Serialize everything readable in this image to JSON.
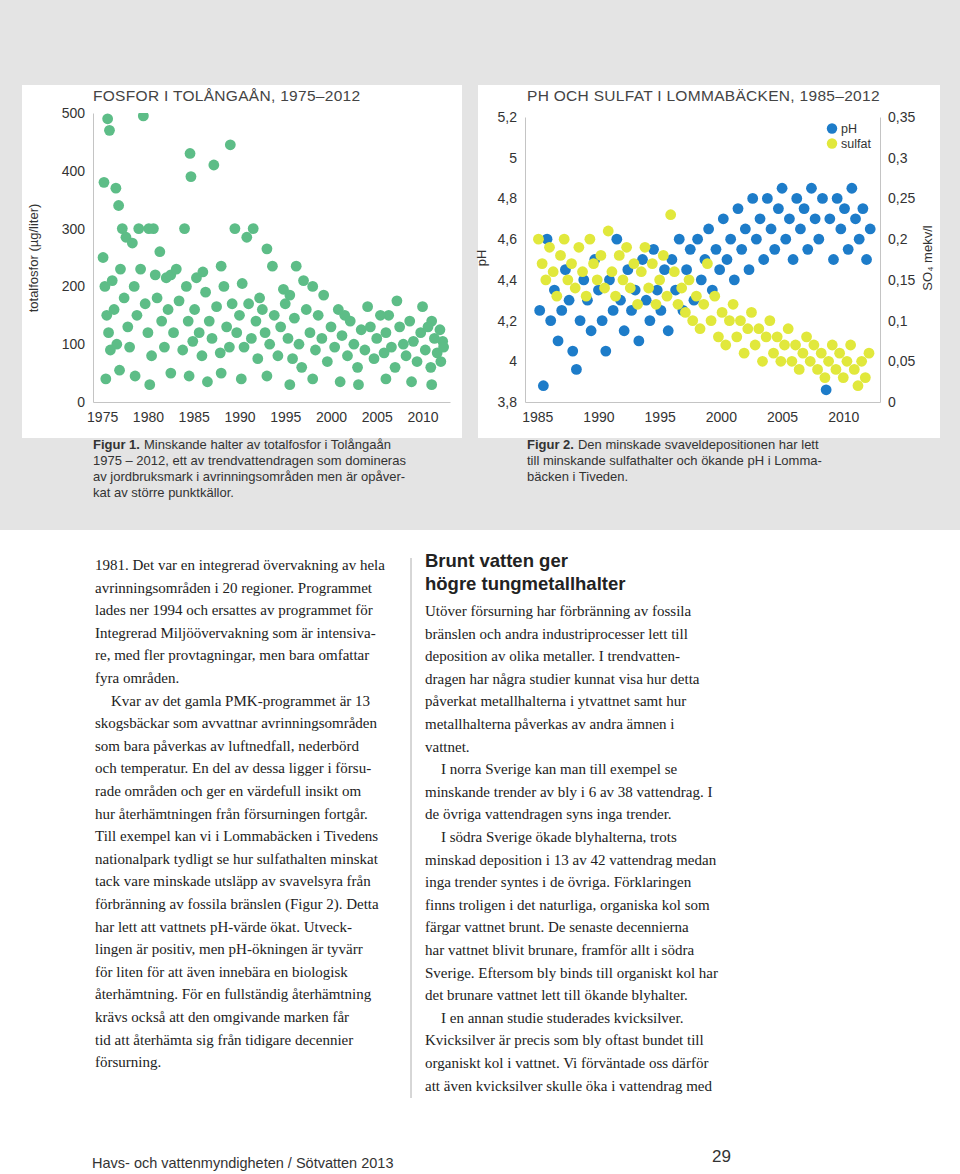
{
  "chart_data": [
    {
      "type": "scatter",
      "title": "FOSFOR I TOLÅNGAÅN, 1975–2012",
      "ylabel": "totalfosfor (µg/liter)",
      "color": "#5dbd87",
      "marker": "circle",
      "grid": false,
      "xlim": [
        1974,
        2013
      ],
      "xticks": [
        1975,
        1980,
        1985,
        1990,
        1995,
        2000,
        2005,
        2010
      ],
      "ylim": [
        0,
        500
      ],
      "yticks": [
        0,
        100,
        200,
        300,
        400,
        500
      ],
      "x": [
        1975.2,
        1975.6,
        1975.8,
        1976.5,
        1976.8,
        1977.2,
        1977.6,
        1978.3,
        1979.0,
        1979.5,
        1980.1,
        1980.6,
        1981.3,
        1982.0,
        1982.5,
        1984.0,
        1984.6,
        1984.7,
        1985.3,
        1986.0,
        1987.2,
        1988.0,
        1989.0,
        1989.5,
        1990.3,
        1990.8,
        1991.5,
        1992.2,
        1993.0,
        1993.6,
        1994.8,
        1995.5,
        1996.2,
        1997.0,
        1998.0,
        1999.2,
        2001.5,
        2004.0,
        2006.3,
        2007.2,
        2010.0,
        2011.0,
        2012.2,
        1975.1,
        1975.3,
        1975.5,
        1975.7,
        1975.9,
        1976.1,
        1976.3,
        1976.6,
        1977.0,
        1977.4,
        1977.8,
        1978.0,
        1978.5,
        1978.8,
        1979.2,
        1979.7,
        1980.0,
        1980.4,
        1980.8,
        1981.0,
        1981.5,
        1981.8,
        1982.2,
        1982.8,
        1983.1,
        1983.4,
        1983.8,
        1984.2,
        1984.4,
        1984.9,
        1985.1,
        1985.6,
        1985.9,
        1986.3,
        1986.7,
        1987.0,
        1987.5,
        1987.9,
        1988.3,
        1988.6,
        1988.9,
        1989.2,
        1989.7,
        1990.0,
        1990.5,
        1991.0,
        1991.3,
        1991.8,
        1992.0,
        1992.5,
        1992.8,
        1993.3,
        1993.8,
        1994.2,
        1994.5,
        1995.0,
        1995.3,
        1995.8,
        1996.0,
        1996.5,
        1996.8,
        1997.3,
        1997.7,
        1998.3,
        1998.6,
        1999.0,
        1999.6,
        2000.0,
        2000.4,
        2000.8,
        2001.2,
        2001.8,
        2002.1,
        2002.5,
        2002.9,
        2003.3,
        2003.7,
        2004.3,
        2004.7,
        2005.0,
        2005.4,
        2005.8,
        2006.0,
        2006.6,
        2007.0,
        2007.5,
        2007.9,
        2008.2,
        2008.6,
        2009.0,
        2009.4,
        2009.8,
        2010.3,
        2010.6,
        2010.9,
        2011.3,
        2011.6,
        2011.9,
        2012.0,
        2012.3,
        1975.4,
        1976.9,
        1978.6,
        1980.2,
        1982.5,
        1984.5,
        1986.5,
        1988.0,
        1990.2,
        1993.0,
        1995.5,
        1998.0,
        2001.0,
        2003.0,
        2006.0,
        2008.8,
        2011.0
      ],
      "values": [
        380,
        490,
        470,
        370,
        340,
        300,
        285,
        275,
        300,
        495,
        300,
        300,
        260,
        215,
        220,
        300,
        430,
        390,
        215,
        225,
        410,
        235,
        445,
        300,
        205,
        285,
        300,
        180,
        265,
        235,
        195,
        185,
        235,
        210,
        200,
        185,
        150,
        165,
        150,
        175,
        165,
        140,
        105,
        250,
        200,
        150,
        120,
        90,
        210,
        160,
        100,
        230,
        180,
        130,
        95,
        200,
        150,
        230,
        170,
        120,
        80,
        220,
        180,
        140,
        95,
        160,
        120,
        230,
        175,
        90,
        200,
        140,
        105,
        160,
        120,
        80,
        190,
        140,
        110,
        165,
        85,
        200,
        130,
        95,
        170,
        120,
        150,
        95,
        170,
        110,
        140,
        75,
        160,
        120,
        100,
        150,
        80,
        130,
        170,
        110,
        75,
        145,
        100,
        60,
        160,
        120,
        90,
        150,
        110,
        70,
        130,
        95,
        160,
        115,
        80,
        140,
        100,
        60,
        125,
        90,
        130,
        75,
        110,
        150,
        85,
        120,
        95,
        60,
        130,
        100,
        80,
        140,
        105,
        70,
        120,
        90,
        130,
        60,
        110,
        85,
        125,
        70,
        95,
        40,
        55,
        45,
        30,
        50,
        45,
        35,
        50,
        40,
        45,
        30,
        40,
        35,
        30,
        40,
        35,
        30
      ]
    },
    {
      "type": "scatter",
      "title": "PH OCH SULFAT I LOMMABÄCKEN, 1985–2012",
      "ylabel": "pH",
      "y2label": "SO₄ mekv/l",
      "marker": "circle",
      "grid": false,
      "legend": "upper right",
      "xlim": [
        1984,
        2013
      ],
      "xticks": [
        1985,
        1990,
        1995,
        2000,
        2005,
        2010
      ],
      "ylim": [
        3.8,
        5.2
      ],
      "yticks": [
        {
          "value": 3.8,
          "label": "3,8"
        },
        4,
        {
          "value": 4.2,
          "label": "4,2"
        },
        {
          "value": 4.4,
          "label": "4,4"
        },
        {
          "value": 4.6,
          "label": "4,6"
        },
        {
          "value": 4.8,
          "label": "4,8"
        },
        5,
        {
          "value": 5.2,
          "label": "5,2"
        }
      ],
      "y2lim": [
        0,
        0.35
      ],
      "y2ticks": [
        0,
        {
          "value": 0.05,
          "label": "0,05"
        },
        {
          "value": 0.1,
          "label": "0,1"
        },
        {
          "value": 0.15,
          "label": "0,15"
        },
        {
          "value": 0.2,
          "label": "0,2"
        },
        {
          "value": 0.25,
          "label": "0,25"
        },
        {
          "value": 0.3,
          "label": "0,3"
        },
        {
          "value": 0.35,
          "label": "0,35"
        }
      ],
      "series": [
        {
          "name": "pH",
          "color": "#1d7cc9",
          "x": [
            1985.2,
            1985.5,
            1985.8,
            1986.1,
            1986.4,
            1986.7,
            1987.0,
            1987.3,
            1987.6,
            1987.9,
            1988.2,
            1988.5,
            1988.8,
            1989.1,
            1989.4,
            1989.7,
            1990.0,
            1990.3,
            1990.6,
            1990.9,
            1991.2,
            1991.5,
            1991.8,
            1992.1,
            1992.4,
            1992.7,
            1993.0,
            1993.3,
            1993.6,
            1993.9,
            1994.2,
            1994.5,
            1994.8,
            1995.1,
            1995.4,
            1995.7,
            1996.0,
            1996.3,
            1996.6,
            1996.9,
            1997.2,
            1997.5,
            1997.8,
            1998.1,
            1998.4,
            1998.7,
            1999.0,
            1999.3,
            1999.6,
            1999.9,
            2000.2,
            2000.5,
            2000.8,
            2001.1,
            2001.4,
            2001.7,
            2002.0,
            2002.3,
            2002.6,
            2002.9,
            2003.2,
            2003.5,
            2003.8,
            2004.1,
            2004.4,
            2004.7,
            2005.0,
            2005.3,
            2005.6,
            2005.9,
            2006.2,
            2006.5,
            2006.8,
            2007.1,
            2007.4,
            2007.7,
            2008.0,
            2008.3,
            2008.6,
            2008.9,
            2009.2,
            2009.5,
            2009.8,
            2010.1,
            2010.4,
            2010.7,
            2011.0,
            2011.3,
            2011.6,
            2011.9,
            2012.2
          ],
          "values": [
            4.25,
            3.88,
            4.6,
            4.2,
            4.35,
            4.1,
            4.25,
            4.45,
            4.3,
            4.05,
            3.96,
            4.2,
            4.4,
            4.3,
            4.15,
            4.5,
            4.35,
            4.2,
            4.05,
            4.4,
            4.25,
            4.6,
            4.3,
            4.15,
            4.45,
            4.25,
            4.35,
            4.1,
            4.5,
            4.3,
            4.2,
            4.55,
            4.35,
            4.25,
            4.45,
            4.15,
            4.5,
            4.35,
            4.6,
            4.25,
            4.45,
            4.55,
            4.3,
            4.6,
            4.4,
            4.5,
            4.65,
            4.35,
            4.55,
            4.45,
            4.7,
            4.5,
            4.6,
            4.4,
            4.75,
            4.55,
            4.65,
            4.45,
            4.8,
            4.6,
            4.7,
            4.5,
            4.8,
            4.65,
            4.55,
            4.75,
            4.85,
            4.6,
            4.7,
            4.5,
            4.8,
            4.65,
            4.75,
            4.55,
            4.85,
            4.7,
            4.6,
            4.8,
            3.86,
            4.7,
            4.5,
            4.8,
            4.65,
            4.75,
            4.55,
            4.85,
            4.7,
            4.6,
            4.75,
            4.5,
            4.65
          ]
        },
        {
          "name": "sulfat",
          "color": "#e1e83c",
          "axis": "y2",
          "x": [
            1985.1,
            1985.4,
            1985.7,
            1986.0,
            1986.3,
            1986.6,
            1986.9,
            1987.2,
            1987.5,
            1987.8,
            1988.1,
            1988.4,
            1988.7,
            1989.0,
            1989.3,
            1989.6,
            1989.9,
            1990.2,
            1990.5,
            1990.8,
            1991.1,
            1991.4,
            1991.7,
            1992.0,
            1992.3,
            1992.6,
            1992.9,
            1993.2,
            1993.5,
            1993.8,
            1994.1,
            1994.4,
            1994.7,
            1995.0,
            1995.3,
            1995.6,
            1995.9,
            1996.2,
            1996.5,
            1996.8,
            1997.1,
            1997.4,
            1997.7,
            1998.0,
            1998.3,
            1998.6,
            1998.9,
            1999.2,
            1999.5,
            1999.8,
            2000.1,
            2000.4,
            2000.7,
            2001.0,
            2001.3,
            2001.6,
            2001.9,
            2002.2,
            2002.5,
            2002.8,
            2003.1,
            2003.4,
            2003.7,
            2004.0,
            2004.3,
            2004.6,
            2004.9,
            2005.2,
            2005.5,
            2005.8,
            2006.1,
            2006.4,
            2006.7,
            2007.0,
            2007.3,
            2007.6,
            2007.9,
            2008.2,
            2008.5,
            2008.8,
            2009.1,
            2009.4,
            2009.7,
            2010.0,
            2010.3,
            2010.6,
            2010.9,
            2011.2,
            2011.5,
            2011.8,
            2012.1
          ],
          "values": [
            0.2,
            0.17,
            0.15,
            0.19,
            0.16,
            0.13,
            0.18,
            0.2,
            0.15,
            0.17,
            0.14,
            0.19,
            0.16,
            0.13,
            0.2,
            0.17,
            0.15,
            0.18,
            0.14,
            0.21,
            0.16,
            0.13,
            0.18,
            0.15,
            0.19,
            0.14,
            0.17,
            0.12,
            0.16,
            0.19,
            0.14,
            0.17,
            0.12,
            0.15,
            0.18,
            0.13,
            0.23,
            0.16,
            0.12,
            0.14,
            0.11,
            0.15,
            0.1,
            0.13,
            0.09,
            0.12,
            0.17,
            0.1,
            0.13,
            0.08,
            0.11,
            0.07,
            0.1,
            0.12,
            0.08,
            0.1,
            0.06,
            0.09,
            0.11,
            0.07,
            0.09,
            0.05,
            0.08,
            0.1,
            0.06,
            0.08,
            0.05,
            0.07,
            0.09,
            0.05,
            0.07,
            0.04,
            0.06,
            0.08,
            0.05,
            0.07,
            0.04,
            0.06,
            0.03,
            0.05,
            0.07,
            0.04,
            0.06,
            0.03,
            0.05,
            0.07,
            0.04,
            0.02,
            0.05,
            0.03,
            0.06
          ]
        }
      ]
    }
  ],
  "document": {
    "captions": [
      {
        "label": "Figur 1.",
        "lines": [
          "Minskande halter av totalfosfor i Tolångaån",
          "1975 – 2012, ett av trendvattendragen som domineras",
          "av jordbruksmark i avrinningsområden men är opåver-",
          "kat av större punktkällor."
        ]
      },
      {
        "label": "Figur 2.",
        "lines": [
          "Den minskade svaveldepositionen har lett",
          "till minskande sulfathalter och ökande pH i Lomma-",
          "bäcken i Tiveden."
        ]
      }
    ],
    "columns": [
      {
        "paragraphs": [
          [
            "1981. Det var en integrerad övervakning av hela",
            "avrinningsområden i 20 regioner. Programmet",
            "lades ner 1994 och ersattes av programmet för",
            "Integrerad Miljöövervakning som är intensiva-",
            "re, med fler provtagningar, men bara omfattar",
            "fyra områden."
          ],
          [
            "Kvar av det gamla PMK-programmet är 13",
            "skogsbäckar som avvattnar avrinningsområden",
            "som bara påverkas av luftnedfall, nederbörd",
            "och temperatur. En del av dessa ligger i försu-",
            "rade områden och ger en värdefull insikt om",
            "hur återhämtningen från försurningen fortgår.",
            "Till exempel kan vi i Lommabäcken i Tivedens",
            "nationalpark tydligt se hur sulfathalten minskat",
            "tack vare minskade utsläpp av svavelsyra från",
            "förbränning av fossila bränslen (Figur 2). Detta",
            "har lett att vattnets pH-värde ökat. Utveck-",
            "lingen är positiv, men pH-ökningen är tyvärr",
            "för liten för att även innebära en biologisk",
            "återhämtning. För en fullständig återhämtning",
            "krävs också att den omgivande marken får",
            "tid att återhämta sig från tidigare decennier",
            "försurning."
          ]
        ]
      },
      {
        "heading": [
          "Brunt vatten ger",
          "högre tungmetallhalter"
        ],
        "paragraphs": [
          [
            "Utöver försurning har förbränning av fossila",
            "bränslen och andra industriprocesser lett till",
            "deposition av olika metaller. I trendvatten-",
            "dragen har några studier kunnat visa hur detta",
            "påverkat metallhalterna i ytvattnet samt hur",
            "metallhalterna påverkas av andra ämnen i",
            "vattnet."
          ],
          [
            "I norra Sverige kan man till exempel se",
            "minskande trender av bly i 6 av 38 vattendrag. I",
            "de övriga vattendragen syns inga trender."
          ],
          [
            "I södra Sverige ökade blyhalterna, trots",
            "minskad deposition i 13 av 42 vattendrag medan",
            "inga trender syntes i de övriga. Förklaringen",
            "finns troligen i det naturliga, organiska kol som",
            "färgar vattnet brunt. De senaste decennierna",
            "har vattnet blivit brunare, framför allt i södra",
            "Sverige. Eftersom bly binds till organiskt kol har",
            "det brunare vattnet lett till ökande blyhalter."
          ],
          [
            "I en annan studie studerades kvicksilver.",
            "Kvicksilver är precis som bly oftast bundet till",
            "organiskt kol i vattnet. Vi förväntade oss därför",
            "att även kvicksilver skulle öka i vattendrag med"
          ]
        ]
      }
    ],
    "footer": {
      "publisher": "Havs- och vattenmyndigheten / Sötvatten 2013",
      "page": 29
    }
  }
}
